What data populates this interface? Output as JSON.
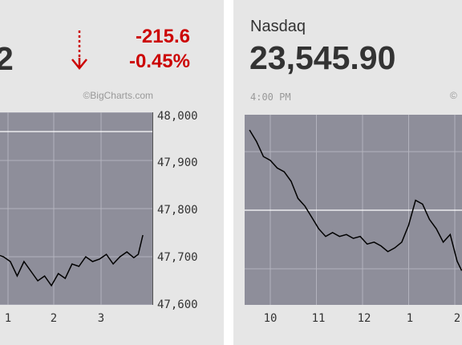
{
  "left_panel": {
    "value_partial": "2",
    "change_points": "-215.6",
    "change_percent": "-0.45%",
    "direction_icon": "arrow-down-icon",
    "credit": "©BigCharts.com",
    "y_ticks": [
      "48,000",
      "47,900",
      "47,800",
      "47,700",
      "47,600"
    ],
    "x_ticks": [
      "1",
      "2",
      "3"
    ]
  },
  "right_panel": {
    "index_name": "Nasdaq",
    "value": "23,545.90",
    "time": "4:00 PM",
    "credit_partial": "©",
    "x_ticks": [
      "10",
      "11",
      "12",
      "1",
      "2"
    ]
  },
  "colors": {
    "negative": "#cc0000",
    "plot_bg": "#8e8e9a",
    "grid": "#b3b3bd",
    "line": "#000000",
    "prev_close": "#ffffff"
  },
  "chart_data": [
    {
      "type": "line",
      "title": "",
      "y_ticks": [
        48000,
        47900,
        47800,
        47700,
        47600
      ],
      "ylim": [
        47600,
        48000
      ],
      "x_ticks": [
        "1",
        "2",
        "3"
      ],
      "previous_close": 47960,
      "series": [
        {
          "x": [
            12.0,
            12.15,
            12.3,
            12.45,
            12.6,
            12.75,
            12.9,
            13.05,
            13.2,
            13.35,
            13.5,
            13.65,
            13.8,
            13.95,
            14.1,
            14.25,
            14.4,
            14.55,
            14.7,
            14.85,
            15.0,
            15.15,
            15.3,
            15.45,
            15.6,
            15.75,
            15.85,
            15.95
          ],
          "y": [
            47765,
            47785,
            47750,
            47730,
            47720,
            47705,
            47700,
            47690,
            47660,
            47690,
            47670,
            47650,
            47660,
            47640,
            47665,
            47655,
            47685,
            47680,
            47700,
            47690,
            47695,
            47705,
            47685,
            47700,
            47710,
            47698,
            47705,
            47745
          ]
        }
      ]
    },
    {
      "type": "line",
      "title": "",
      "x_ticks": [
        "10",
        "11",
        "12",
        "1",
        "2"
      ],
      "series": [
        {
          "x": [
            9.55,
            9.7,
            9.85,
            10.0,
            10.15,
            10.3,
            10.45,
            10.6,
            10.75,
            10.9,
            11.05,
            11.2,
            11.35,
            11.5,
            11.65,
            11.8,
            11.95,
            12.1,
            12.25,
            12.4,
            12.55,
            12.7,
            12.85,
            13.0,
            13.15,
            13.3,
            13.45,
            13.6,
            13.75,
            13.9,
            14.05,
            14.15
          ],
          "y": [
            0.92,
            0.86,
            0.78,
            0.76,
            0.72,
            0.7,
            0.65,
            0.56,
            0.52,
            0.46,
            0.4,
            0.36,
            0.38,
            0.36,
            0.37,
            0.35,
            0.36,
            0.32,
            0.33,
            0.31,
            0.28,
            0.3,
            0.33,
            0.42,
            0.55,
            0.53,
            0.45,
            0.4,
            0.33,
            0.37,
            0.23,
            0.18
          ]
        }
      ]
    }
  ]
}
